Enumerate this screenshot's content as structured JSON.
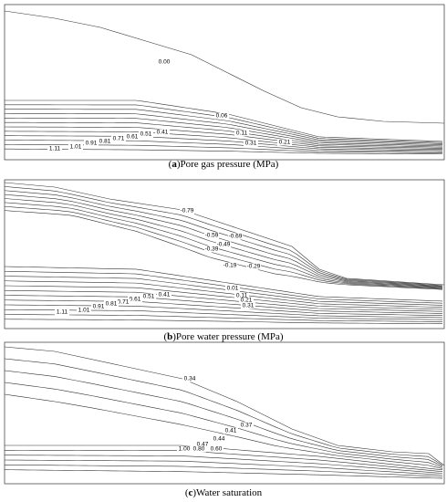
{
  "panels": [
    {
      "caption": [
        "(",
        "a",
        ")Pore gas pressure (MPa)"
      ],
      "labels": [
        "0.00",
        "0.06",
        "0.11",
        "0.31",
        "0.21",
        "0.41",
        "0.51",
        "0.61",
        "0.71",
        "0.81",
        "0.91",
        "1.01",
        "1.11"
      ]
    },
    {
      "caption": [
        "(",
        "b",
        ")Pore water pressure (MPa)"
      ],
      "labels": [
        "-0.79",
        "-0.69",
        "-0.59",
        "-0.49",
        "-0.39",
        "-0.29",
        "-0.19",
        "0.01",
        "0.11",
        "0.21",
        "0.31",
        "0.41",
        "0.51",
        "0.61",
        "0.71",
        "0.81",
        "0.91",
        "1.01",
        "1.11"
      ]
    },
    {
      "caption": [
        "(",
        "c",
        ")Water saturation"
      ],
      "labels": [
        "0.34",
        "0.37",
        "0.41",
        "0.44",
        "0.47",
        "0.60",
        "0.80",
        "1.00"
      ]
    }
  ]
}
